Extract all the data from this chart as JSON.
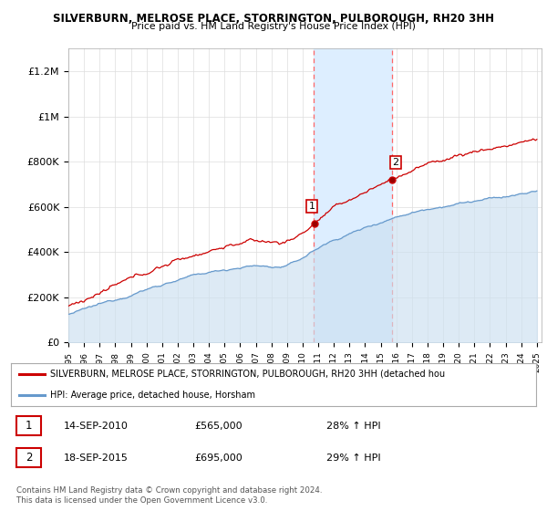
{
  "title1": "SILVERBURN, MELROSE PLACE, STORRINGTON, PULBOROUGH, RH20 3HH",
  "title2": "Price paid vs. HM Land Registry's House Price Index (HPI)",
  "ylabel_ticks": [
    "£0",
    "£200K",
    "£400K",
    "£600K",
    "£800K",
    "£1M",
    "£1.2M"
  ],
  "ytick_values": [
    0,
    200000,
    400000,
    600000,
    800000,
    1000000,
    1200000
  ],
  "ylim": [
    0,
    1300000
  ],
  "sale1_price": 565000,
  "sale1_date": "14-SEP-2010",
  "sale1_pct": "28%",
  "sale2_price": 695000,
  "sale2_date": "18-SEP-2015",
  "sale2_pct": "29%",
  "red_line_color": "#cc0000",
  "blue_line_color": "#6699cc",
  "blue_fill_color": "#cce0f0",
  "highlight_color": "#ddeeff",
  "dashed_line_color": "#ff6666",
  "legend_label_red": "SILVERBURN, MELROSE PLACE, STORRINGTON, PULBOROUGH, RH20 3HH (detached hou",
  "legend_label_blue": "HPI: Average price, detached house, Horsham",
  "copyright_text": "Contains HM Land Registry data © Crown copyright and database right 2024.\nThis data is licensed under the Open Government Licence v3.0.",
  "sale1_year": 2010.71,
  "sale2_year": 2015.71
}
